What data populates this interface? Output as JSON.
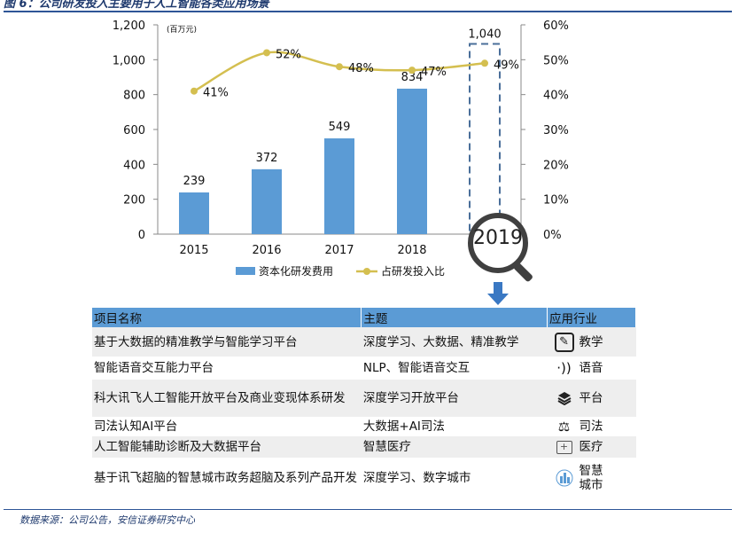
{
  "figure_title": "图 6：公司研发投入主要用于人工智能各类应用场景",
  "chart_data": {
    "type": "bar",
    "categories": [
      "2015",
      "2016",
      "2017",
      "2018",
      "2019"
    ],
    "unit_label": "(百万元)",
    "series": [
      {
        "name": "资本化研发费用",
        "kind": "bar",
        "axis": "left",
        "color": "#5b9bd5",
        "values": [
          239,
          372,
          549,
          834,
          1040
        ],
        "value_labels": [
          "239",
          "372",
          "549",
          "834",
          "1,040"
        ]
      },
      {
        "name": "占研发投入比",
        "kind": "line",
        "axis": "right",
        "color": "#d4bf50",
        "values": [
          41,
          52,
          48,
          47,
          49
        ],
        "value_labels": [
          "41%",
          "52%",
          "48%",
          "47%",
          "49%"
        ]
      }
    ],
    "left_axis": {
      "ylim": [
        0,
        1200
      ],
      "ticks": [
        "0",
        "200",
        "400",
        "600",
        "800",
        "1,000",
        "1,200"
      ]
    },
    "right_axis": {
      "ylim": [
        0,
        60
      ],
      "ticks": [
        "0%",
        "10%",
        "20%",
        "30%",
        "40%",
        "50%",
        "60%"
      ]
    },
    "highlight": {
      "category": "2019",
      "style": "dashed-box"
    },
    "legend_position": "bottom",
    "grid": false
  },
  "zoom_label": "2019",
  "table": {
    "headers": [
      "项目名称",
      "主题",
      "应用行业"
    ],
    "rows": [
      {
        "project": "基于大数据的精准教学与智能学习平台",
        "theme": "深度学习、大数据、精准教学",
        "industry": "教学",
        "icon": "pen-box-icon"
      },
      {
        "project": "智能语音交互能力平台",
        "theme": "NLP、智能语音交互",
        "industry": "语音",
        "icon": "voice-icon"
      },
      {
        "project": "科大讯飞人工智能开放平台及商业变现体系研发",
        "theme": "深度学习开放平台",
        "industry": "平台",
        "icon": "layers-icon"
      },
      {
        "project": "司法认知AI平台",
        "theme": "大数据+AI司法",
        "industry": "司法",
        "icon": "scales-icon"
      },
      {
        "project": "人工智能辅助诊断及大数据平台",
        "theme": "智慧医疗",
        "industry": "医疗",
        "icon": "medical-kit-icon"
      },
      {
        "project": "基于讯飞超脑的智慧城市政务超脑及系列产品开发",
        "theme": "深度学习、数字城市",
        "industry": "智慧城市",
        "icon": "city-icon"
      }
    ]
  },
  "source": "数据来源：公司公告，安信证券研究中心"
}
